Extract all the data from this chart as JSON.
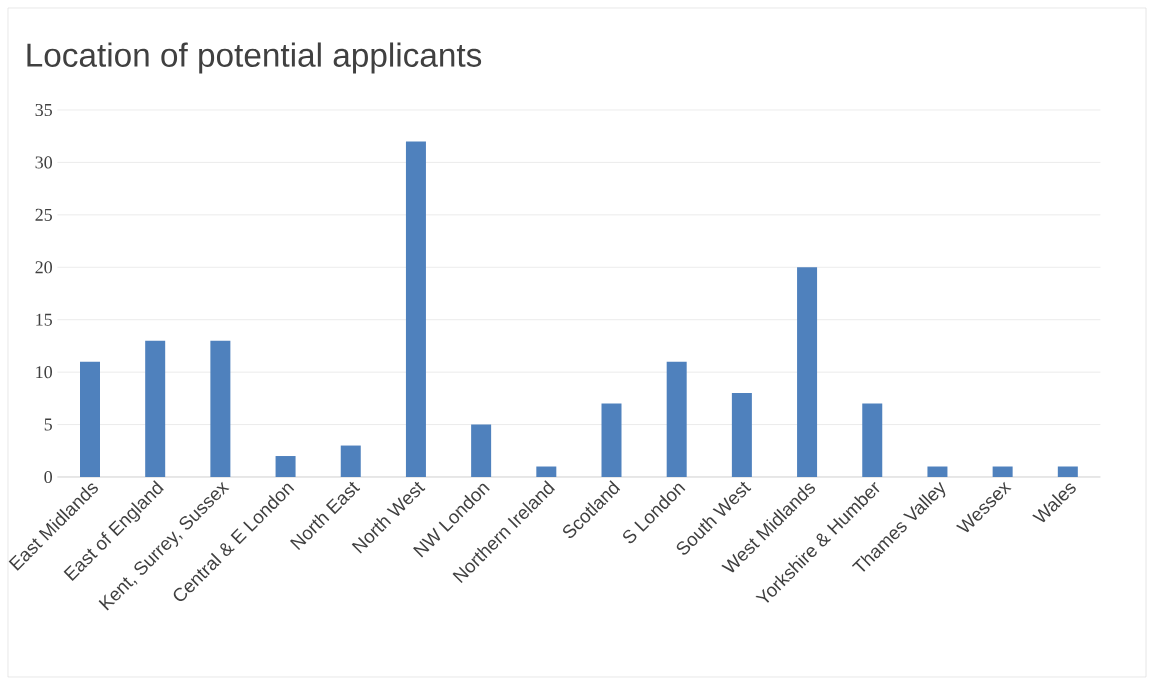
{
  "chart_data": {
    "type": "bar",
    "title": "Location of potential applicants",
    "categories": [
      "East Midlands",
      "East of England",
      "Kent, Surrey, Sussex",
      "Central & E London",
      "North East",
      "North West",
      "NW London",
      "Northern Ireland",
      "Scotland",
      "S London",
      "South West",
      "West Midlands",
      "Yorkshire & Humber",
      "Thames Valley",
      "Wessex",
      "Wales"
    ],
    "values": [
      11,
      13,
      13,
      2,
      3,
      32,
      5,
      1,
      7,
      11,
      8,
      20,
      7,
      1,
      1,
      1
    ],
    "color": "#4f81bd",
    "ylim": [
      0,
      35
    ],
    "yticks": [
      0,
      5,
      10,
      15,
      20,
      25,
      30,
      35
    ],
    "grid": "y"
  }
}
